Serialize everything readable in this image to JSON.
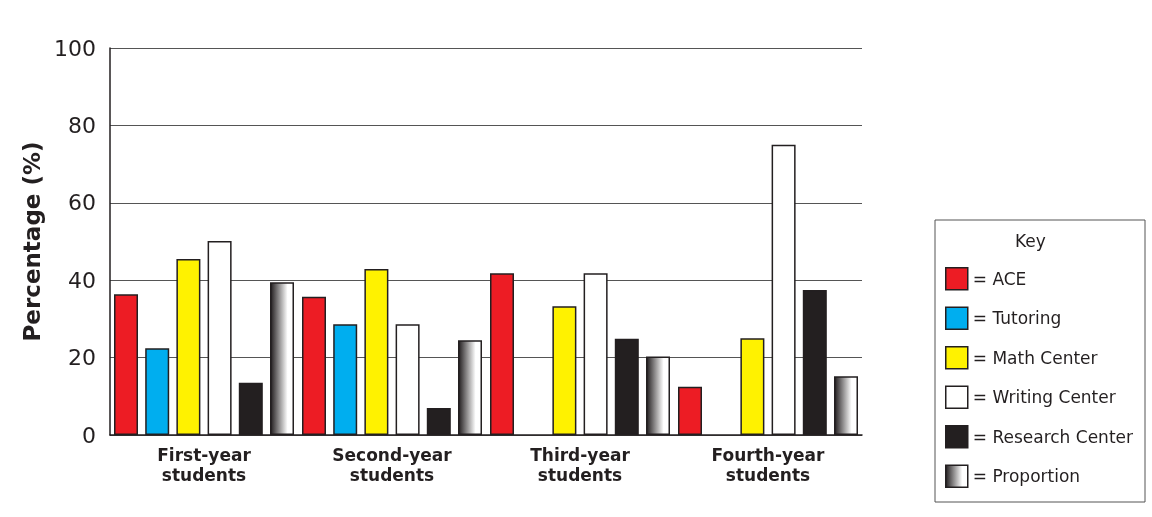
{
  "chart_data": {
    "type": "bar",
    "ylabel": "Percentage (%)",
    "legend_title": "Key",
    "categories": [
      "First-year\nstudents",
      "Second-year\nstudents",
      "Third-year\nstudents",
      "Fourth-year\nstudents"
    ],
    "series": [
      {
        "name": "= ACE",
        "color": "#ed1c24",
        "values": [
          36.4,
          35.7,
          41.8,
          12.5
        ]
      },
      {
        "name": "= Tutoring",
        "color": "#00aeef",
        "values": [
          22.4,
          28.6,
          null,
          null
        ]
      },
      {
        "name": "= Math Center",
        "color": "#fff200",
        "values": [
          45.5,
          42.9,
          33.3,
          25
        ]
      },
      {
        "name": "= Writing Center",
        "color": "#ffffff",
        "values": [
          50.1,
          28.6,
          41.8,
          75
        ]
      },
      {
        "name": "= Research Center",
        "color": "#231f20",
        "values": [
          13.5,
          7,
          24.9,
          37.5
        ]
      },
      {
        "name": "= Proportion",
        "color": "#231f20",
        "values": [
          39.5,
          24.5,
          20.3,
          15.2
        ]
      }
    ],
    "ylim": [
      0,
      100
    ],
    "yticks": [
      0,
      20,
      40,
      60,
      80,
      100
    ],
    "grid": "y",
    "legend": "right"
  }
}
